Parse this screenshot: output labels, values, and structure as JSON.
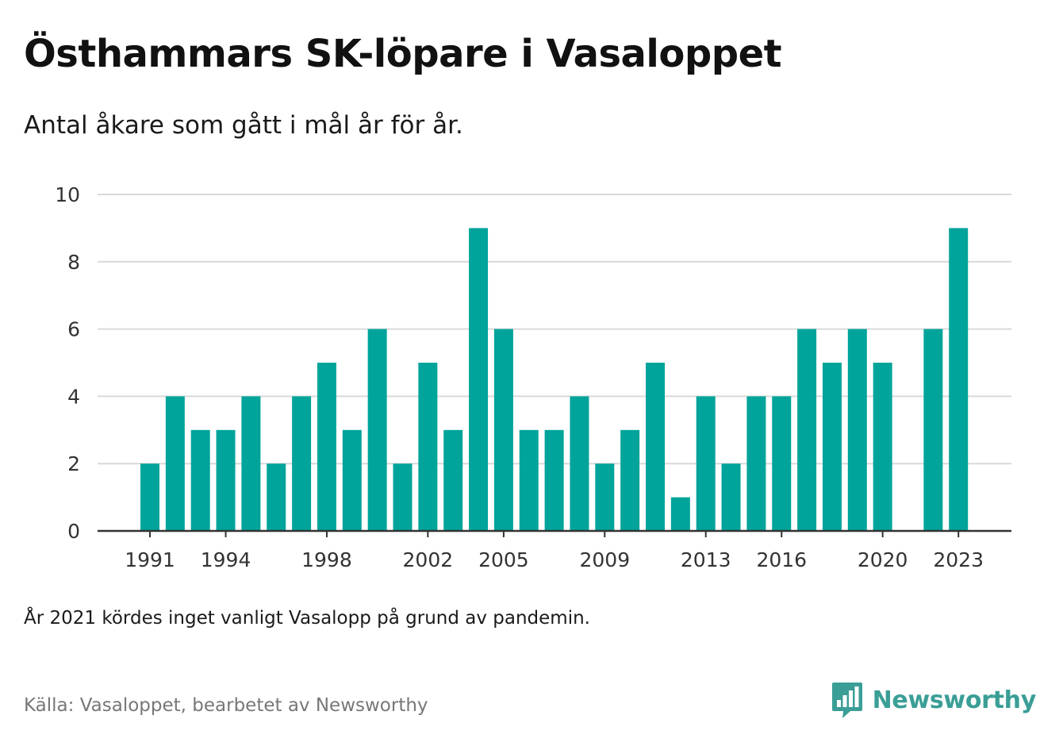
{
  "title": "Östhammars SK-löpare i Vasaloppet",
  "subtitle": "Antal åkare som gått i mål år för år.",
  "note": "År 2021 kördes inget vanligt Vasalopp på grund av pandemin.",
  "source": "Källa: Vasaloppet, bearbetet av Newsworthy",
  "brand": {
    "name": "Newsworthy",
    "icon": "bar-chart-speech-bubble-icon",
    "color": "#3a9e96"
  },
  "colors": {
    "bar": "#00a49a",
    "grid": "#d9d9d9",
    "axis": "#333333"
  },
  "chart_data": {
    "type": "bar",
    "title": "Östhammars SK-löpare i Vasaloppet",
    "subtitle": "Antal åkare som gått i mål år för år.",
    "categories": [
      "1991",
      "1992",
      "1993",
      "1994",
      "1995",
      "1996",
      "1997",
      "1998",
      "1999",
      "2000",
      "2001",
      "2002",
      "2003",
      "2004",
      "2005",
      "2006",
      "2007",
      "2008",
      "2009",
      "2010",
      "2011",
      "2012",
      "2013",
      "2014",
      "2015",
      "2016",
      "2017",
      "2018",
      "2019",
      "2020",
      "2021",
      "2022",
      "2023"
    ],
    "values": [
      2,
      4,
      3,
      3,
      4,
      2,
      4,
      5,
      3,
      6,
      2,
      5,
      3,
      9,
      6,
      3,
      3,
      4,
      2,
      3,
      5,
      1,
      4,
      2,
      4,
      4,
      6,
      5,
      6,
      5,
      0,
      6,
      9
    ],
    "x_tick_labels": [
      "1991",
      "1994",
      "1998",
      "2002",
      "2005",
      "2009",
      "2013",
      "2016",
      "2020",
      "2023"
    ],
    "y_ticks": [
      0,
      2,
      4,
      6,
      8,
      10
    ],
    "ylim": [
      0,
      10
    ],
    "xlabel": "",
    "ylabel": "",
    "grid": true,
    "legend": "none"
  }
}
